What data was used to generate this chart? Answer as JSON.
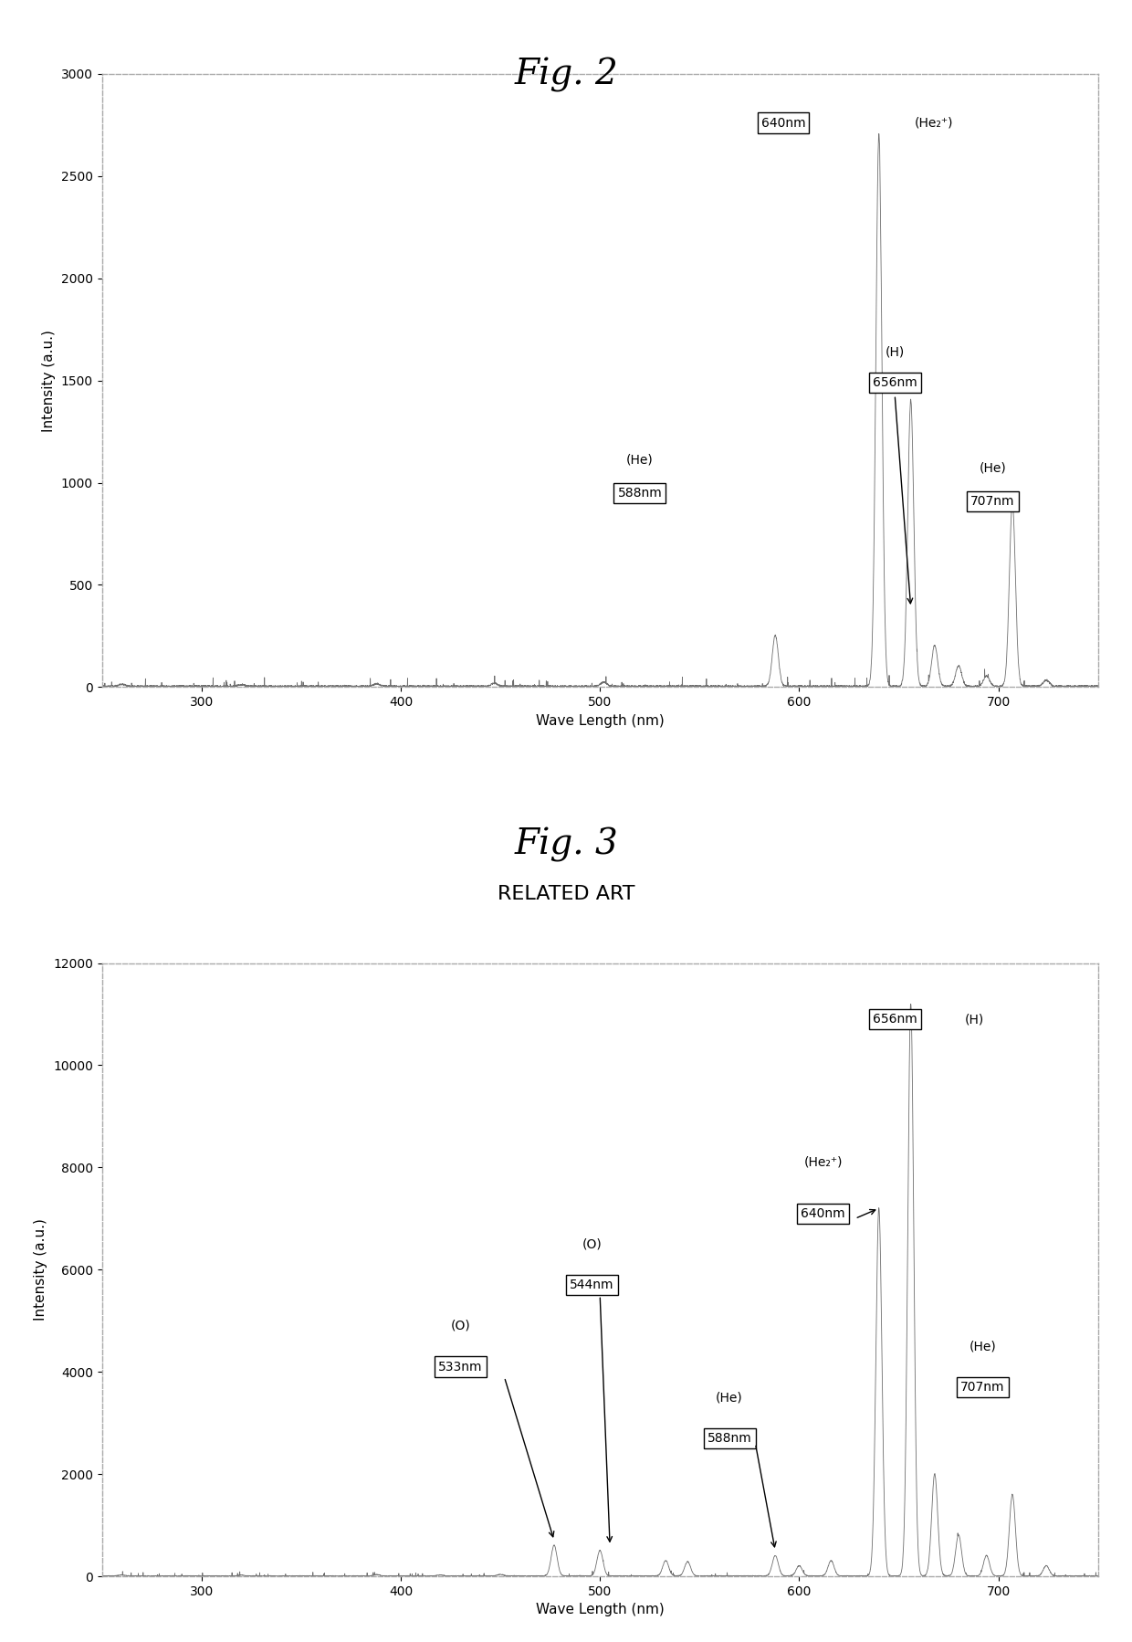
{
  "fig2": {
    "title": "Fig. 2",
    "xlabel": "Wave Length (nm)",
    "ylabel": "Intensity (a.u.)",
    "xlim": [
      250,
      750
    ],
    "ylim": [
      0,
      3000
    ],
    "yticks": [
      0,
      500,
      1000,
      1500,
      2000,
      2500,
      3000
    ],
    "peaks_f2": [
      {
        "wl": 588,
        "intensity": 250
      },
      {
        "wl": 640,
        "intensity": 2700
      },
      {
        "wl": 656,
        "intensity": 1400
      },
      {
        "wl": 707,
        "intensity": 900
      },
      {
        "wl": 260,
        "intensity": 10
      },
      {
        "wl": 320,
        "intensity": 8
      },
      {
        "wl": 388,
        "intensity": 12
      },
      {
        "wl": 447,
        "intensity": 15
      },
      {
        "wl": 502,
        "intensity": 20
      },
      {
        "wl": 668,
        "intensity": 200
      },
      {
        "wl": 680,
        "intensity": 100
      },
      {
        "wl": 694,
        "intensity": 50
      },
      {
        "wl": 724,
        "intensity": 30
      }
    ],
    "noise_level": 30
  },
  "fig3": {
    "title": "Fig. 3",
    "subtitle": "RELATED ART",
    "xlabel": "Wave Length (nm)",
    "ylabel": "Intensity (a.u.)",
    "xlim": [
      250,
      750
    ],
    "ylim": [
      0,
      12000
    ],
    "yticks": [
      0,
      2000,
      4000,
      6000,
      8000,
      10000,
      12000
    ],
    "peaks_f3": [
      {
        "wl": 477,
        "intensity": 600
      },
      {
        "wl": 500,
        "intensity": 500
      },
      {
        "wl": 533,
        "intensity": 300
      },
      {
        "wl": 544,
        "intensity": 280
      },
      {
        "wl": 588,
        "intensity": 400
      },
      {
        "wl": 600,
        "intensity": 200
      },
      {
        "wl": 616,
        "intensity": 300
      },
      {
        "wl": 640,
        "intensity": 7200
      },
      {
        "wl": 656,
        "intensity": 11200
      },
      {
        "wl": 668,
        "intensity": 2000
      },
      {
        "wl": 680,
        "intensity": 800
      },
      {
        "wl": 694,
        "intensity": 400
      },
      {
        "wl": 707,
        "intensity": 1600
      },
      {
        "wl": 724,
        "intensity": 200
      },
      {
        "wl": 260,
        "intensity": 20
      },
      {
        "wl": 320,
        "intensity": 15
      },
      {
        "wl": 388,
        "intensity": 25
      },
      {
        "wl": 420,
        "intensity": 18
      },
      {
        "wl": 450,
        "intensity": 30
      }
    ],
    "noise_level": 50
  },
  "fig_title_fontsize": 28,
  "subtitle_fontsize": 16,
  "axis_label_fontsize": 11,
  "tick_fontsize": 10,
  "annotation_fontsize": 10,
  "line_color": "#555555",
  "background_color": "white",
  "plot_bg_color": "white"
}
